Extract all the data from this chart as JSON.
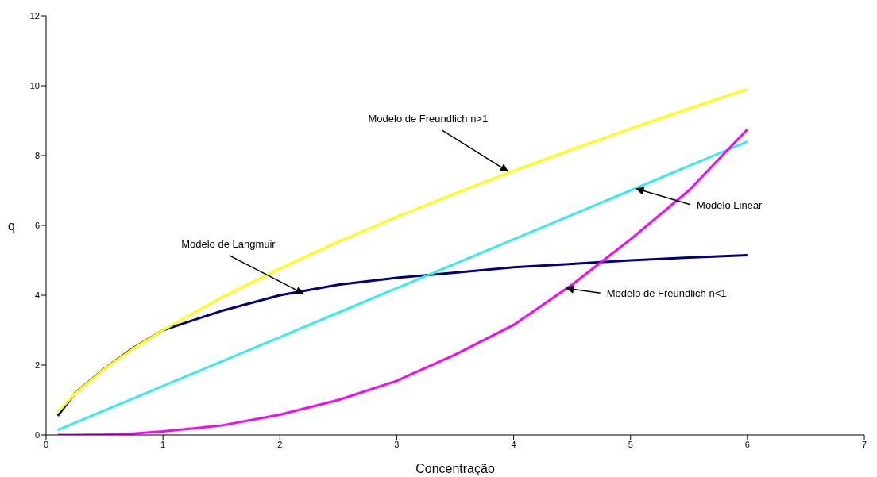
{
  "chart_data": {
    "type": "line",
    "xlabel": "Concentração",
    "ylabel": "q",
    "x": [
      0.1,
      0.25,
      0.5,
      0.75,
      1,
      1.5,
      2,
      2.5,
      3,
      3.5,
      4,
      4.5,
      5,
      5.5,
      6
    ],
    "series": [
      {
        "color": "#000080",
        "values": [
          0.55,
          1.2,
          1.9,
          2.5,
          3.0,
          3.55,
          4.0,
          4.3,
          4.5,
          4.65,
          4.8,
          4.9,
          5.0,
          5.08,
          5.15
        ]
      },
      {
        "color": "#ffff00",
        "values": [
          0.65,
          1.19,
          1.89,
          2.48,
          3.0,
          3.93,
          4.76,
          5.53,
          6.24,
          6.91,
          7.56,
          8.17,
          8.77,
          9.34,
          9.9
        ]
      },
      {
        "color": "#33ecf2",
        "values": [
          0.14,
          0.35,
          0.7,
          1.05,
          1.4,
          2.1,
          2.8,
          3.5,
          4.2,
          4.9,
          5.6,
          6.3,
          7.0,
          7.7,
          8.4
        ]
      },
      {
        "color": "#ff00ff",
        "values": [
          0,
          0,
          0.01,
          0.04,
          0.1,
          0.27,
          0.58,
          1.0,
          1.55,
          2.3,
          3.15,
          4.3,
          5.6,
          7.0,
          8.75
        ]
      }
    ],
    "xlim": [
      0,
      7
    ],
    "xticks": [
      0,
      1,
      2,
      3,
      4,
      5,
      6,
      7
    ],
    "ylim": [
      0,
      12
    ],
    "yticks": [
      0,
      2,
      4,
      6,
      8,
      10,
      12
    ],
    "grid": false,
    "legend": false,
    "marker": "none",
    "line_style": "solid",
    "annotations": [
      {
        "text": "Modelo de Freundlich n>1",
        "x": 3.95,
        "y": 7.55
      },
      {
        "text": "Modelo Linear",
        "x": 5.05,
        "y": 7.05
      },
      {
        "text": "Modelo de Langmuir",
        "x": 2.2,
        "y": 4.05
      },
      {
        "text": "Modelo de Freundlich n<1",
        "x": 4.45,
        "y": 4.2
      }
    ]
  }
}
